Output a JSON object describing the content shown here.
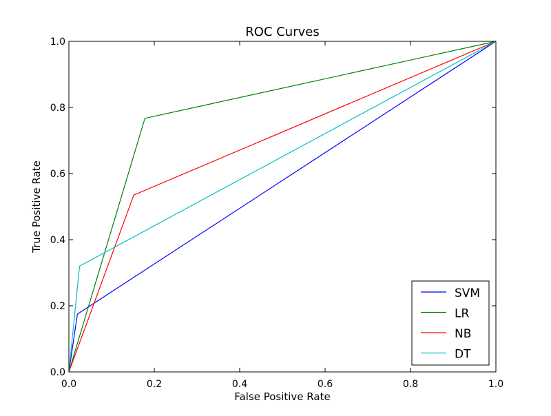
{
  "chart_data": {
    "type": "line",
    "title": "ROC Curves",
    "xlabel": "False Positive Rate",
    "ylabel": "True Positive Rate",
    "xlim": [
      0.0,
      1.0
    ],
    "ylim": [
      0.0,
      1.0
    ],
    "xticks": [
      0.0,
      0.2,
      0.4,
      0.6,
      0.8,
      1.0
    ],
    "yticks": [
      0.0,
      0.2,
      0.4,
      0.6,
      0.8,
      1.0
    ],
    "xtick_labels": [
      "0.0",
      "0.2",
      "0.4",
      "0.6",
      "0.8",
      "1.0"
    ],
    "ytick_labels": [
      "0.0",
      "0.2",
      "0.4",
      "0.6",
      "0.8",
      "1.0"
    ],
    "grid": false,
    "legend_position": "lower-right",
    "series": [
      {
        "name": "SVM",
        "color": "#0000ff",
        "x": [
          0.0,
          0.02,
          1.0
        ],
        "y": [
          0.0,
          0.175,
          1.0
        ]
      },
      {
        "name": "LR",
        "color": "#008000",
        "x": [
          0.0,
          0.178,
          1.0
        ],
        "y": [
          0.0,
          0.767,
          1.0
        ]
      },
      {
        "name": "NB",
        "color": "#ff0000",
        "x": [
          0.0,
          0.152,
          1.0
        ],
        "y": [
          0.0,
          0.535,
          1.0
        ]
      },
      {
        "name": "DT",
        "color": "#00bfbf",
        "x": [
          0.0,
          0.025,
          1.0
        ],
        "y": [
          0.0,
          0.32,
          1.0
        ]
      }
    ]
  }
}
